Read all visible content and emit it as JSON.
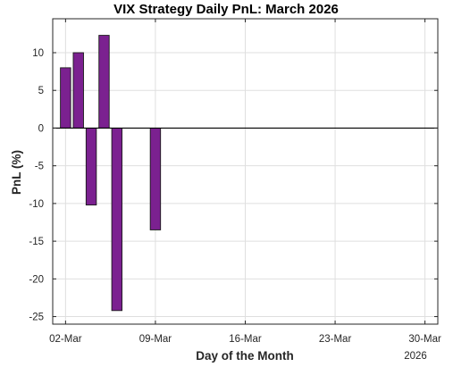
{
  "chart_data": {
    "type": "bar",
    "title": "VIX Strategy Daily PnL: March 2026",
    "xlabel": "Day of the Month",
    "ylabel": "PnL (%)",
    "x_secondary_label": "2026",
    "x": [
      "2026-03-02",
      "2026-03-03",
      "2026-03-04",
      "2026-03-05",
      "2026-03-06",
      "2026-03-09"
    ],
    "values": [
      8.0,
      10.0,
      -10.2,
      12.3,
      -24.2,
      -13.5
    ],
    "xlim": [
      "2026-03-01",
      "2026-03-31"
    ],
    "ylim": [
      -26,
      14.5
    ],
    "xticks": [
      "2026-03-02",
      "2026-03-09",
      "2026-03-16",
      "2026-03-23",
      "2026-03-30"
    ],
    "xtick_labels": [
      "02-Mar",
      "09-Mar",
      "16-Mar",
      "23-Mar",
      "30-Mar"
    ],
    "yticks": [
      -25,
      -20,
      -15,
      -10,
      -5,
      0,
      5,
      10
    ],
    "grid": true,
    "bar_color": "#7b2190",
    "bar_edge_color": "#1a1a1a"
  }
}
